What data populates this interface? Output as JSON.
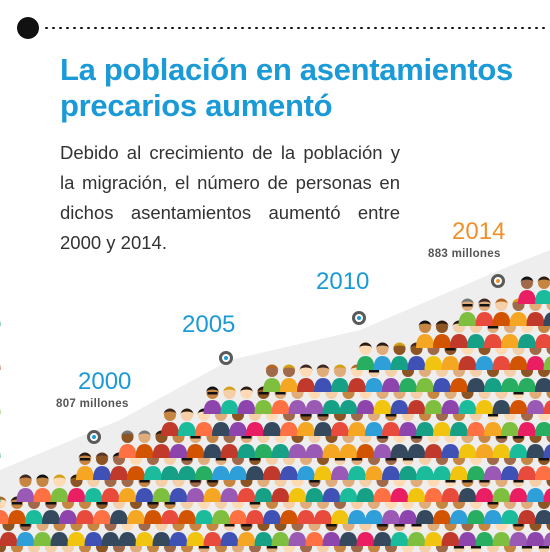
{
  "title": "La población en asentamientos precarios aumentó",
  "description": "Debido al crecimiento de la población y la migración, el número de personas en dichos asentamientos aumentó entre 2000 y 2014.",
  "colors": {
    "accent_blue": "#1a9ad6",
    "accent_orange": "#f0902b",
    "text": "#333333"
  },
  "timeline": [
    {
      "year": "2000",
      "population": "807 millones"
    },
    {
      "year": "2005",
      "population": ""
    },
    {
      "year": "2010",
      "population": ""
    },
    {
      "year": "2014",
      "population": "883 millones"
    }
  ]
}
